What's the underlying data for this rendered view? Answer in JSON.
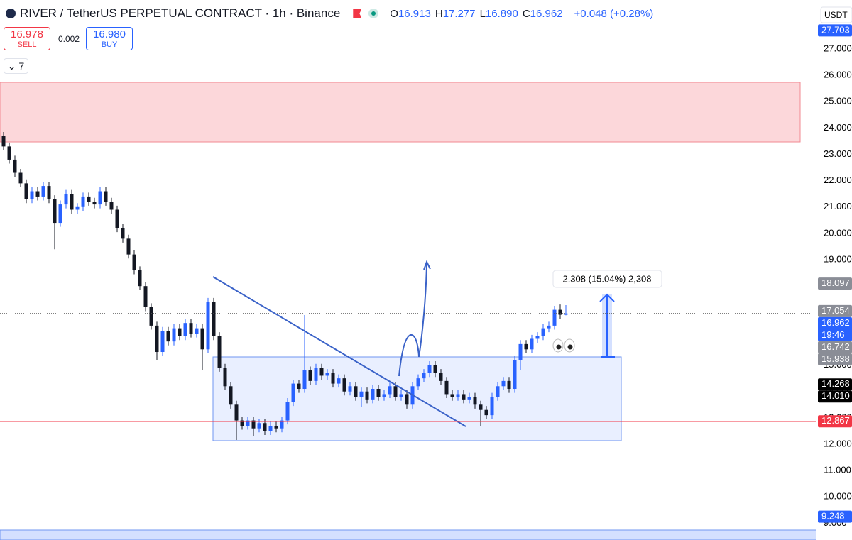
{
  "header": {
    "title": "RIVER / TetherUS PERPETUAL CONTRACT · 1h · Binance",
    "ohlc": [
      {
        "label": "O",
        "value": "16.913"
      },
      {
        "label": "H",
        "value": "17.277"
      },
      {
        "label": "L",
        "value": "16.890"
      },
      {
        "label": "C",
        "value": "16.962"
      }
    ],
    "change": "+0.048 (+0.28%)"
  },
  "trade": {
    "sell_price": "16.978",
    "sell_label": "SELL",
    "spread": "0.002",
    "buy_price": "16.980",
    "buy_label": "BUY"
  },
  "indicators_count": "7",
  "chart_data": {
    "type": "candlestick",
    "open": [
      23.7,
      23.3,
      22.8,
      22.3,
      21.9,
      21.3,
      21.6,
      21.4,
      21.8,
      21.3,
      20.4,
      21.1,
      21.5,
      20.9,
      21.0,
      21.4,
      21.2,
      21.1,
      21.6,
      21.2,
      20.9,
      20.2,
      19.8,
      19.2,
      18.6,
      18.0,
      17.2,
      16.5,
      15.5,
      16.3,
      15.9,
      16.4,
      16.1,
      16.6,
      16.2,
      16.4,
      15.6,
      17.4,
      16.1,
      14.9,
      14.2,
      13.5,
      12.9,
      12.7,
      12.9,
      12.6,
      12.8,
      12.5,
      12.7,
      12.6,
      12.9,
      13.6,
      14.3,
      14.1,
      14.8,
      14.4,
      14.9,
      14.6,
      14.7,
      14.3,
      14.5,
      14.0,
      14.2,
      13.8,
      14.0,
      13.7,
      14.1,
      13.8,
      13.9,
      14.2,
      13.8,
      13.9,
      13.5,
      14.2,
      14.5,
      14.7,
      15.0,
      14.7,
      14.4,
      13.9,
      13.8,
      13.9,
      13.7,
      13.8,
      13.5,
      13.3,
      13.1,
      13.8,
      14.2,
      14.4,
      14.1,
      15.2,
      15.8,
      15.6,
      16.0,
      16.1,
      16.4,
      16.5,
      17.1,
      16.913
    ],
    "high": [
      23.85,
      23.45,
      22.95,
      22.45,
      22.05,
      21.75,
      21.75,
      21.95,
      21.95,
      21.45,
      21.25,
      21.65,
      21.65,
      21.15,
      21.55,
      21.55,
      21.35,
      21.75,
      21.75,
      21.35,
      21.05,
      20.35,
      19.95,
      19.35,
      18.75,
      18.15,
      17.35,
      16.65,
      16.45,
      16.45,
      16.55,
      16.55,
      16.75,
      16.75,
      16.55,
      16.55,
      17.55,
      17.55,
      16.25,
      15.05,
      14.35,
      13.65,
      13.05,
      13.05,
      13.05,
      12.95,
      12.95,
      12.85,
      12.85,
      13.05,
      13.75,
      14.45,
      14.45,
      16.9,
      14.95,
      15.05,
      15.05,
      14.85,
      14.85,
      14.65,
      14.65,
      14.35,
      14.35,
      14.15,
      14.15,
      14.25,
      14.25,
      14.05,
      14.35,
      14.35,
      14.05,
      14.05,
      14.35,
      14.65,
      14.85,
      15.15,
      15.15,
      14.85,
      14.55,
      14.05,
      14.05,
      14.05,
      13.95,
      13.95,
      13.65,
      13.45,
      13.95,
      14.35,
      14.55,
      14.55,
      15.35,
      15.95,
      15.95,
      16.15,
      16.25,
      16.55,
      16.65,
      17.25,
      17.3,
      17.277
    ],
    "low": [
      23.15,
      22.65,
      22.15,
      21.75,
      21.15,
      21.15,
      21.25,
      21.25,
      21.15,
      19.4,
      20.25,
      20.95,
      20.75,
      20.75,
      20.85,
      21.05,
      20.95,
      20.95,
      21.05,
      20.75,
      20.05,
      19.65,
      19.05,
      18.45,
      17.85,
      17.05,
      16.35,
      15.2,
      15.35,
      15.75,
      15.75,
      15.95,
      15.95,
      16.05,
      16.05,
      14.8,
      15.45,
      15.95,
      14.75,
      14.05,
      13.35,
      12.16,
      12.55,
      12.55,
      12.3,
      12.45,
      12.35,
      12.35,
      12.45,
      12.45,
      12.75,
      13.45,
      13.95,
      13.95,
      14.25,
      14.25,
      14.45,
      14.45,
      14.15,
      14.15,
      13.85,
      13.85,
      13.65,
      13.4,
      13.55,
      13.55,
      13.65,
      13.65,
      13.75,
      13.65,
      13.65,
      13.35,
      13.35,
      14.05,
      14.35,
      14.55,
      14.55,
      14.25,
      13.75,
      13.65,
      13.65,
      13.55,
      13.55,
      13.35,
      12.7,
      12.95,
      12.95,
      13.65,
      14.05,
      13.95,
      13.95,
      14.8,
      15.45,
      15.45,
      15.85,
      15.95,
      16.25,
      16.35,
      16.75,
      16.89
    ],
    "close": [
      23.3,
      22.8,
      22.3,
      21.9,
      21.3,
      21.6,
      21.4,
      21.8,
      21.3,
      20.4,
      21.1,
      21.5,
      20.9,
      21.0,
      21.4,
      21.2,
      21.1,
      21.6,
      21.2,
      20.9,
      20.2,
      19.8,
      19.2,
      18.6,
      18.0,
      17.2,
      16.5,
      15.5,
      16.3,
      15.9,
      16.4,
      16.1,
      16.6,
      16.2,
      16.4,
      15.6,
      17.4,
      16.1,
      14.9,
      14.2,
      13.5,
      12.9,
      12.7,
      12.9,
      12.6,
      12.8,
      12.5,
      12.7,
      12.6,
      12.9,
      13.6,
      14.3,
      14.1,
      14.8,
      14.4,
      14.9,
      14.6,
      14.7,
      14.3,
      14.5,
      14.0,
      14.2,
      13.8,
      14.0,
      13.7,
      14.1,
      13.8,
      13.9,
      14.2,
      13.8,
      13.9,
      13.5,
      14.2,
      14.5,
      14.7,
      15.0,
      14.7,
      14.4,
      13.9,
      13.8,
      13.9,
      13.7,
      13.8,
      13.5,
      13.3,
      13.1,
      13.8,
      14.2,
      14.4,
      14.1,
      15.2,
      15.8,
      15.6,
      16.0,
      16.1,
      16.4,
      16.5,
      17.1,
      16.913,
      16.962
    ],
    "up_color": "#2962ff",
    "down_color": "#131722",
    "ylim": [
      8.364,
      28.858
    ],
    "yticks": [
      {
        "value": 9,
        "label": "9.000"
      },
      {
        "value": 10,
        "label": "10.000"
      },
      {
        "value": 11,
        "label": "11.000"
      },
      {
        "value": 12,
        "label": "12.000"
      },
      {
        "value": 13,
        "label": "13.000"
      },
      {
        "value": 14,
        "label": "14.000"
      },
      {
        "value": 15,
        "label": "15.000"
      },
      {
        "value": 16,
        "label": "16.000"
      },
      {
        "value": 17,
        "label": "17.000"
      },
      {
        "value": 18,
        "label": "18.000"
      },
      {
        "value": 19,
        "label": "19.000"
      },
      {
        "value": 20,
        "label": "20.000"
      },
      {
        "value": 21,
        "label": "21.000"
      },
      {
        "value": 22,
        "label": "22.000"
      },
      {
        "value": 23,
        "label": "23.000"
      },
      {
        "value": 24,
        "label": "24.000"
      },
      {
        "value": 25,
        "label": "25.000"
      },
      {
        "value": 26,
        "label": "26.000"
      },
      {
        "value": 27,
        "label": "27.000"
      }
    ],
    "currency": "USDT",
    "price_labels": [
      {
        "value": 27.703,
        "label": "27.703",
        "color": "#2962ff"
      },
      {
        "value": 18.097,
        "label": "18.097",
        "color": "#8a8d96"
      },
      {
        "value": 17.054,
        "label": "17.054",
        "color": "#8a8d96"
      },
      {
        "value": 16.962,
        "label": "16.962",
        "color": "#2962ff",
        "line": "dotted"
      },
      {
        "value": 16.742,
        "label": "16.742",
        "color": "#8a8d96"
      },
      {
        "value": 15.938,
        "label": "15.938",
        "color": "#8a8d96"
      },
      {
        "value": 14.268,
        "label": "14.268",
        "color": "#000000"
      },
      {
        "value": 14.01,
        "label": "14.010",
        "color": "#000000"
      },
      {
        "value": 12.867,
        "label": "12.867",
        "color": "#f23645",
        "line": "solid"
      },
      {
        "value": 9.248,
        "label": "9.248",
        "color": "#2962ff"
      }
    ],
    "countdown": "19:46",
    "measure_label": "2.308 (15.04%) 2,308"
  }
}
